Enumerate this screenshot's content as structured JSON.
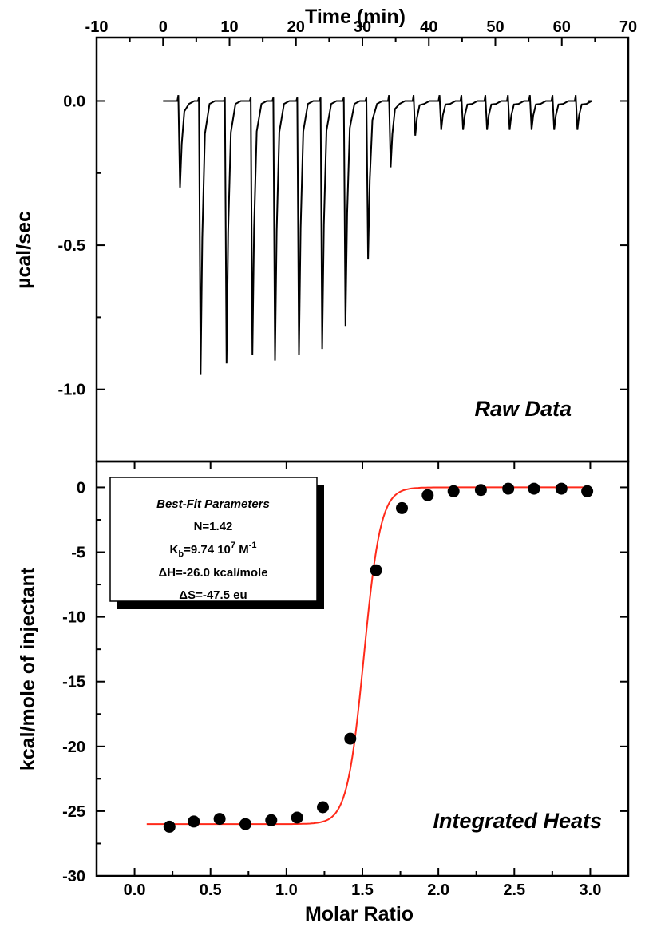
{
  "chart_data": [
    {
      "type": "line",
      "panel_label": "Raw Data",
      "xlabel": "Time (min)",
      "ylabel": "µcal/sec",
      "xlim": [
        -10,
        70
      ],
      "ylim": [
        -1.25,
        0.22
      ],
      "x_ticks": [
        "-10",
        "0",
        "10",
        "20",
        "30",
        "40",
        "50",
        "60",
        "70"
      ],
      "y_ticks": [
        "0.0",
        "-0.5",
        "-1.0"
      ],
      "baseline": 0.0,
      "series": [
        {
          "injection_times": [
            2.3,
            5.4,
            9.3,
            13.2,
            16.6,
            20.2,
            23.7,
            27.2,
            30.6,
            34.0,
            37.7,
            41.6,
            44.9,
            48.5,
            51.9,
            55.2,
            58.6,
            62.1
          ],
          "peak_values": [
            -0.3,
            -0.95,
            -0.91,
            -0.88,
            -0.9,
            -0.88,
            -0.86,
            -0.78,
            -0.55,
            -0.23,
            -0.12,
            -0.1,
            -0.1,
            -0.1,
            -0.1,
            -0.1,
            -0.1,
            -0.1
          ],
          "start_time": 0,
          "end_time": 64
        }
      ],
      "grid": false
    },
    {
      "type": "scatter",
      "panel_label": "Integrated Heats",
      "xlabel": "Molar Ratio",
      "ylabel": "kcal/mole of injectant",
      "xlim": [
        -0.25,
        3.25
      ],
      "ylim": [
        -30,
        2
      ],
      "x_ticks": [
        "0.0",
        "0.5",
        "1.0",
        "1.5",
        "2.0",
        "2.5",
        "3.0"
      ],
      "y_ticks": [
        "0",
        "-5",
        "-10",
        "-15",
        "-20",
        "-25",
        "-30"
      ],
      "series": [
        {
          "x": [
            0.23,
            0.39,
            0.56,
            0.73,
            0.9,
            1.07,
            1.24,
            1.42,
            1.59,
            1.76,
            1.93,
            2.1,
            2.28,
            2.46,
            2.63,
            2.81,
            2.98
          ],
          "y": [
            -26.2,
            -25.8,
            -25.6,
            -26.0,
            -25.7,
            -25.5,
            -24.7,
            -19.4,
            -6.4,
            -1.6,
            -0.6,
            -0.3,
            -0.2,
            -0.1,
            -0.1,
            -0.1,
            -0.3
          ]
        }
      ],
      "fit": {
        "color": "#ff2a1a",
        "N": 1.42,
        "dH": -26.0,
        "x_range": [
          0.08,
          2.98
        ],
        "y_bottom": -26.0
      },
      "fit_parameters": {
        "title": "Best-Fit Parameters",
        "lines": [
          {
            "main": "N=1.42"
          },
          {
            "pre": "K",
            "sub": "b",
            "mid": "=9.74 10",
            "sup": "7",
            "post": " M",
            "sup2": "-1"
          },
          {
            "main": "ΔH=-26.0 kcal/mole"
          },
          {
            "main": "ΔS=-47.5 eu"
          }
        ]
      },
      "grid": false
    }
  ]
}
